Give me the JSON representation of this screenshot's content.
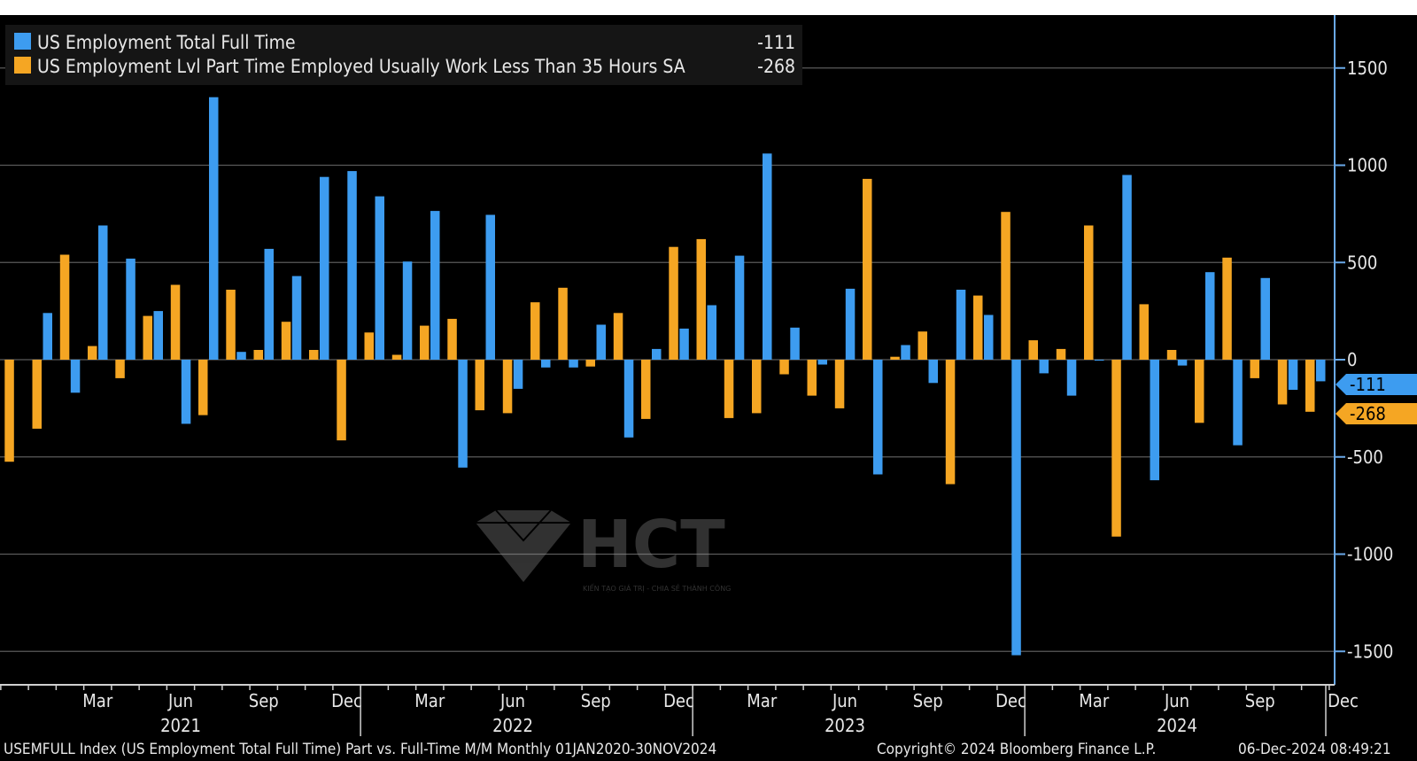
{
  "chart_data": {
    "type": "bar",
    "title": "",
    "xlabel": "",
    "ylabel": "",
    "ylim": [
      -1680,
      1760
    ],
    "yticks": [
      1500,
      1000,
      500,
      0,
      -500,
      -1000,
      -1500
    ],
    "ytick_labels": [
      "1500",
      "1000",
      "500",
      "0",
      "-500",
      "-1000",
      "-1500"
    ],
    "grid": true,
    "legend_position": "top-left",
    "categories": [
      "Dec 2020",
      "Jan 2021",
      "Feb 2021",
      "Mar 2021",
      "Apr 2021",
      "May 2021",
      "Jun 2021",
      "Jul 2021",
      "Aug 2021",
      "Sep 2021",
      "Oct 2021",
      "Nov 2021",
      "Dec 2021",
      "Jan 2022",
      "Feb 2022",
      "Mar 2022",
      "Apr 2022",
      "May 2022",
      "Jun 2022",
      "Jul 2022",
      "Aug 2022",
      "Sep 2022",
      "Oct 2022",
      "Nov 2022",
      "Dec 2022",
      "Jan 2023",
      "Feb 2023",
      "Mar 2023",
      "Apr 2023",
      "May 2023",
      "Jun 2023",
      "Jul 2023",
      "Aug 2023",
      "Sep 2023",
      "Oct 2023",
      "Nov 2023",
      "Dec 2023",
      "Jan 2024",
      "Feb 2024",
      "Mar 2024",
      "Apr 2024",
      "May 2024",
      "Jun 2024",
      "Jul 2024",
      "Aug 2024",
      "Sep 2024",
      "Oct 2024",
      "Nov 2024"
    ],
    "series": [
      {
        "name": "US Employment Total Full Time",
        "color": "#3d9cf0",
        "last_value": "-111",
        "values": [
          null,
          240,
          -170,
          690,
          520,
          250,
          -330,
          1350,
          40,
          570,
          430,
          940,
          970,
          840,
          505,
          765,
          -555,
          745,
          -150,
          -40,
          -40,
          180,
          -400,
          55,
          160,
          280,
          535,
          1060,
          165,
          -25,
          365,
          -590,
          75,
          -120,
          360,
          230,
          -1520,
          -70,
          -185,
          -5,
          950,
          -620,
          -30,
          450,
          -440,
          420,
          -155,
          -111
        ]
      },
      {
        "name": "US Employment Lvl Part Time Employed Usually Work Less Than 35 Hours SA",
        "color": "#f5a623",
        "last_value": "-268",
        "values": [
          -525,
          -355,
          540,
          70,
          -95,
          225,
          385,
          -285,
          360,
          50,
          195,
          50,
          -415,
          140,
          25,
          175,
          210,
          -260,
          -275,
          295,
          370,
          -35,
          240,
          -305,
          580,
          620,
          -300,
          -275,
          -75,
          -185,
          -250,
          930,
          15,
          145,
          -640,
          330,
          760,
          100,
          55,
          690,
          -910,
          285,
          50,
          -325,
          525,
          -95,
          -230,
          -268
        ]
      }
    ],
    "x_month_labels": [
      "Mar",
      "Jun",
      "Sep",
      "Dec",
      "Mar",
      "Jun",
      "Sep",
      "Dec",
      "Mar",
      "Jun",
      "Sep",
      "Dec",
      "Mar",
      "Jun",
      "Sep",
      "Dec"
    ],
    "x_year_labels": [
      "2021",
      "2022",
      "2023",
      "2024"
    ]
  },
  "footer": {
    "description": "USEMFULL Index (US Employment Total Full Time) Part vs. Full-Time M/M  Monthly 01JAN2020-30NOV2024",
    "copyright": "Copyright© 2024 Bloomberg Finance L.P.",
    "timestamp": "06-Dec-2024 08:49:21"
  },
  "watermark": {
    "brand": "HCT",
    "tagline": "KIẾN TẠO GIÁ TRỊ - CHIA SẺ THÀNH CÔNG"
  },
  "colors": {
    "background": "#000000",
    "axis": "#6aa9e8",
    "grid": "#5a5a5a",
    "text": "#e8e8e8"
  }
}
